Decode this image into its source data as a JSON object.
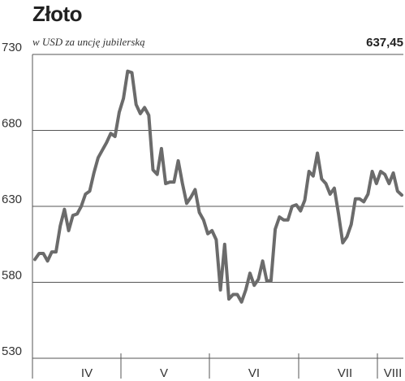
{
  "chart_data": {
    "type": "line",
    "title": "Złoto",
    "subtitle": "w USD za uncję jubilerską",
    "last_value_label": "637,45",
    "ylim": [
      530,
      730
    ],
    "yticks": [
      530,
      580,
      630,
      680,
      730
    ],
    "ytick_labels": [
      "530",
      "580",
      "630",
      "680",
      "730"
    ],
    "grid": "horizontal",
    "months": [
      "IV",
      "V",
      "VI",
      "VII",
      "VIII"
    ],
    "line_color": "#6b6b6b",
    "series": [
      {
        "values": [
          595,
          599,
          599,
          594,
          600,
          600,
          617,
          628,
          614,
          624,
          625,
          630,
          638,
          640,
          652,
          662,
          667,
          672,
          678,
          676,
          692,
          701,
          719,
          718,
          697,
          691,
          695,
          690,
          654,
          651,
          668,
          645,
          646,
          646,
          660,
          645,
          632,
          636,
          641,
          626,
          621,
          612,
          614,
          608,
          575,
          605,
          569,
          572,
          572,
          567,
          575,
          586,
          578,
          582,
          594,
          581,
          581,
          615,
          623,
          621,
          621,
          630,
          631,
          627,
          634,
          653,
          650,
          665,
          648,
          645,
          638,
          642,
          625,
          606,
          610,
          618,
          635,
          635,
          633,
          638,
          653,
          645,
          653,
          651,
          645,
          652,
          640,
          637.45
        ]
      }
    ]
  }
}
